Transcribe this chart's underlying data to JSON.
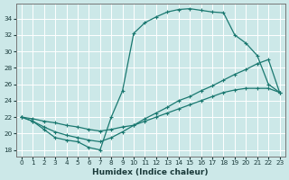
{
  "xlabel": "Humidex (Indice chaleur)",
  "bg_color": "#cce8e8",
  "line_color": "#1a7870",
  "grid_color": "#b8d8d8",
  "xlim": [
    -0.5,
    23.5
  ],
  "ylim": [
    17.2,
    35.8
  ],
  "yticks": [
    18,
    20,
    22,
    24,
    26,
    28,
    30,
    32,
    34
  ],
  "xticks": [
    0,
    1,
    2,
    3,
    4,
    5,
    6,
    7,
    8,
    9,
    10,
    11,
    12,
    13,
    14,
    15,
    16,
    17,
    18,
    19,
    20,
    21,
    22,
    23
  ],
  "curve1_x": [
    0,
    1,
    2,
    3,
    4,
    5,
    6,
    7,
    8,
    9,
    10,
    11,
    12,
    13,
    14,
    15,
    16,
    17,
    18,
    19,
    20,
    21,
    22,
    23
  ],
  "curve1_y": [
    22.0,
    21.5,
    20.5,
    19.5,
    19.2,
    19.0,
    18.3,
    18.0,
    22.0,
    25.2,
    32.2,
    33.5,
    34.2,
    34.8,
    35.1,
    35.2,
    35.0,
    34.8,
    34.7,
    32.0,
    31.0,
    29.5,
    26.0,
    25.0
  ],
  "curve3_x": [
    0,
    1,
    2,
    3,
    4,
    5,
    6,
    7,
    8,
    9,
    10,
    11,
    12,
    13,
    14,
    15,
    16,
    17,
    18,
    19,
    20,
    21,
    22,
    23
  ],
  "curve3_y": [
    22.0,
    21.5,
    20.8,
    20.2,
    19.8,
    19.5,
    19.2,
    19.0,
    19.5,
    20.2,
    21.0,
    21.8,
    22.5,
    23.2,
    24.0,
    24.5,
    25.2,
    25.8,
    26.5,
    27.2,
    27.8,
    28.5,
    29.0,
    25.0
  ],
  "curve2_x": [
    0,
    1,
    2,
    3,
    4,
    5,
    6,
    7,
    8,
    9,
    10,
    11,
    12,
    13,
    14,
    15,
    16,
    17,
    18,
    19,
    20,
    21,
    22,
    23
  ],
  "curve2_y": [
    22.0,
    21.8,
    21.5,
    21.3,
    21.0,
    20.8,
    20.5,
    20.3,
    20.5,
    20.8,
    21.0,
    21.5,
    22.0,
    22.5,
    23.0,
    23.5,
    24.0,
    24.5,
    25.0,
    25.3,
    25.5,
    25.5,
    25.5,
    25.0
  ]
}
